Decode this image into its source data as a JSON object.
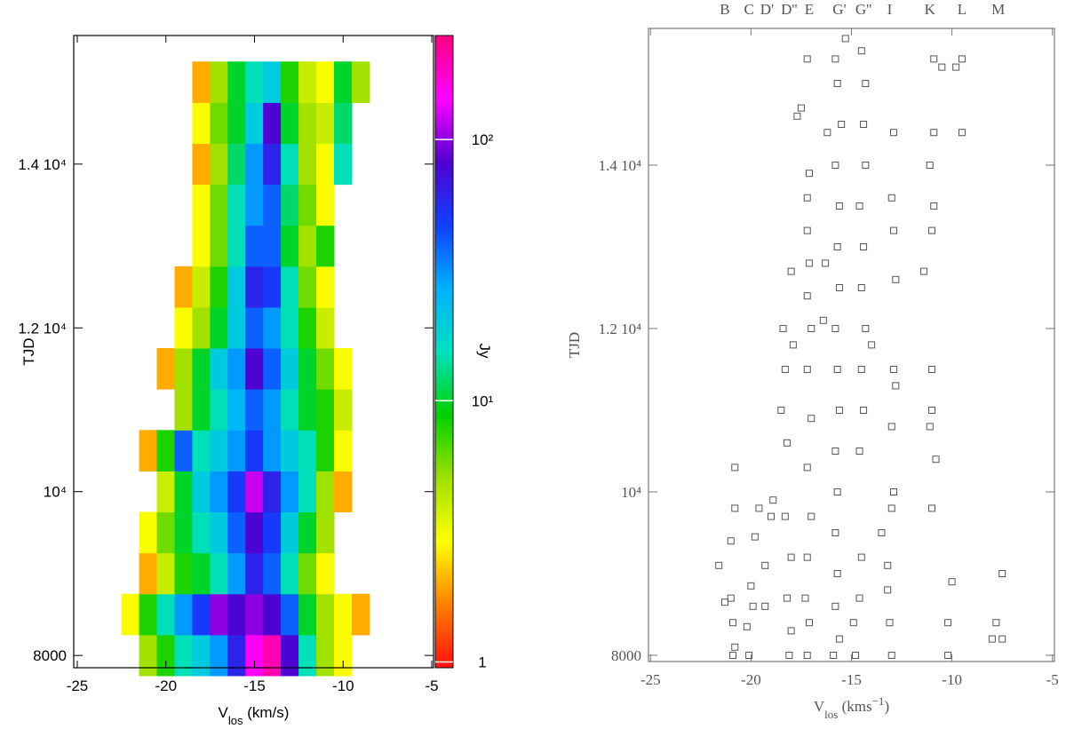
{
  "chart_data": [
    {
      "type": "heatmap",
      "x_label": {
        "main": "V",
        "sub": "los",
        "rest": " (km/s)"
      },
      "y_label": "TJD",
      "colorbar_label": "Jy",
      "x": [
        -22,
        -21,
        -20,
        -19,
        -18,
        -17,
        -16,
        -15,
        -14,
        -13,
        -12,
        -11,
        -10,
        -9
      ],
      "y": [
        8000,
        8500,
        9000,
        9500,
        10000,
        10500,
        11000,
        11500,
        12000,
        12500,
        13000,
        13500,
        14000,
        14500,
        15000
      ],
      "z": [
        [
          null,
          5,
          8,
          15,
          20,
          30,
          60,
          150,
          200,
          80,
          15,
          5,
          3,
          null
        ],
        [
          3,
          8,
          15,
          30,
          50,
          100,
          80,
          100,
          80,
          40,
          10,
          5,
          3,
          2
        ],
        [
          null,
          2,
          4,
          8,
          10,
          15,
          30,
          60,
          40,
          15,
          6,
          3,
          null,
          null
        ],
        [
          null,
          3,
          6,
          10,
          15,
          20,
          40,
          80,
          50,
          20,
          10,
          5,
          null,
          null
        ],
        [
          null,
          null,
          4,
          10,
          20,
          30,
          50,
          120,
          60,
          30,
          15,
          5,
          2,
          null
        ],
        [
          null,
          2,
          8,
          40,
          15,
          20,
          30,
          50,
          30,
          20,
          15,
          8,
          3,
          null
        ],
        [
          null,
          null,
          null,
          5,
          10,
          15,
          25,
          40,
          30,
          15,
          10,
          8,
          4,
          null
        ],
        [
          null,
          null,
          2,
          5,
          10,
          20,
          30,
          80,
          40,
          20,
          10,
          6,
          3,
          null
        ],
        [
          null,
          null,
          null,
          3,
          5,
          10,
          20,
          40,
          30,
          15,
          8,
          4,
          null,
          null
        ],
        [
          null,
          null,
          null,
          2,
          4,
          8,
          20,
          60,
          50,
          15,
          6,
          3,
          null,
          null
        ],
        [
          null,
          null,
          null,
          null,
          3,
          6,
          15,
          40,
          40,
          10,
          5,
          8,
          null,
          null
        ],
        [
          null,
          null,
          null,
          null,
          3,
          6,
          15,
          30,
          40,
          12,
          6,
          3,
          null,
          null
        ],
        [
          null,
          null,
          null,
          null,
          2,
          5,
          12,
          30,
          60,
          15,
          5,
          3,
          15,
          null
        ],
        [
          null,
          null,
          null,
          null,
          3,
          6,
          10,
          20,
          80,
          10,
          5,
          4,
          12,
          null
        ],
        [
          null,
          null,
          null,
          null,
          2,
          5,
          10,
          15,
          20,
          8,
          4,
          3,
          10,
          5
        ]
      ],
      "xlim": [
        -25.2,
        -4.9
      ],
      "xticks": [
        -25,
        -20,
        -15,
        -10,
        -5
      ],
      "ylim": [
        7850,
        15570
      ],
      "yticks": [
        8000,
        {
          "value": 10000,
          "label": "10⁴"
        },
        {
          "value": 12000,
          "label": "1.2 10⁴"
        },
        {
          "value": 14000,
          "label": "1.4 10⁴"
        }
      ],
      "zlim": [
        0.95,
        250
      ],
      "log_color": true,
      "zticks": [
        1,
        {
          "value": 10,
          "label": "10¹"
        },
        {
          "value": 100,
          "label": "10²"
        }
      ],
      "colorscale": [
        "#ff1010",
        "#ff8000",
        "#ffff00",
        "#a0e000",
        "#00d000",
        "#00e0c0",
        "#00b0ff",
        "#1040ff",
        "#5000d0",
        "#ff00ff",
        "#ff0080"
      ]
    },
    {
      "type": "scatter",
      "x_label": {
        "main": "V",
        "sub": "los",
        "rest": " (kms",
        "sup": "−1",
        "end": ")"
      },
      "y_label": "TJD",
      "features": [
        {
          "label": "B",
          "v": -21.3
        },
        {
          "label": "C",
          "v": -20.1
        },
        {
          "label": "D'",
          "v": -19.2
        },
        {
          "label": "D''",
          "v": -18.1
        },
        {
          "label": "E",
          "v": -17.1
        },
        {
          "label": "G'",
          "v": -15.6
        },
        {
          "label": "G''",
          "v": -14.4
        },
        {
          "label": "I",
          "v": -13.1
        },
        {
          "label": "K",
          "v": -11.1
        },
        {
          "label": "L",
          "v": -9.5
        },
        {
          "label": "M",
          "v": -7.7
        }
      ],
      "x": [
        -21.6,
        -21.3,
        -21.0,
        -20.9,
        -20.8,
        -20.9,
        -21.0,
        -20.8,
        -20.8,
        -20.1,
        -20.2,
        -19.9,
        -20.0,
        -19.8,
        -19.6,
        -19.3,
        -19.3,
        -19.0,
        -18.9,
        -18.1,
        -18.0,
        -18.2,
        -18.0,
        -18.3,
        -18.2,
        -18.5,
        -18.3,
        -18.4,
        -18.0,
        -17.9,
        -17.2,
        -17.1,
        -17.3,
        -17.2,
        -17.0,
        -17.2,
        -17.0,
        -17.2,
        -17.0,
        -17.2,
        -17.1,
        -17.2,
        -17.2,
        -17.1,
        -17.7,
        -17.5,
        -17.2,
        -16.4,
        -16.3,
        -16.2,
        -15.9,
        -15.6,
        -15.8,
        -15.7,
        -15.8,
        -15.7,
        -15.8,
        -15.6,
        -15.7,
        -15.8,
        -15.6,
        -15.7,
        -15.6,
        -15.8,
        -15.5,
        -15.7,
        -15.8,
        -15.3,
        -14.8,
        -14.9,
        -14.6,
        -14.5,
        -14.6,
        -14.4,
        -14.5,
        -14.3,
        -14.5,
        -14.4,
        -14.6,
        -14.3,
        -14.4,
        -14.3,
        -14.5,
        -14.0,
        -13.5,
        -13.2,
        -13.0,
        -13.1,
        -13.2,
        -13.0,
        -12.9,
        -13.0,
        -12.8,
        -12.9,
        -12.8,
        -12.9,
        -13.0,
        -12.9,
        -11.4,
        -11.1,
        -11.0,
        -11.0,
        -10.8,
        -11.0,
        -11.0,
        -10.9,
        -11.1,
        -10.9,
        -10.9,
        -10.5,
        -10.2,
        -10.2,
        -10.0,
        -9.5,
        -9.8,
        -9.5,
        -8.0,
        -7.8,
        -7.5,
        -7.5
      ],
      "y": [
        9100,
        8650,
        8700,
        8400,
        8100,
        8000,
        9400,
        9800,
        10300,
        8000,
        8350,
        8600,
        8850,
        9450,
        9800,
        8600,
        9100,
        9700,
        9900,
        8000,
        8300,
        8700,
        9200,
        9700,
        10600,
        11000,
        11500,
        12000,
        12700,
        11800,
        8000,
        8400,
        8700,
        9200,
        9700,
        10300,
        10900,
        11500,
        12000,
        12400,
        12800,
        13200,
        13600,
        13900,
        14600,
        14700,
        15300,
        12100,
        12800,
        14400,
        8000,
        8200,
        8600,
        9000,
        9500,
        10000,
        10500,
        11000,
        11500,
        12000,
        12500,
        13000,
        13500,
        14000,
        14500,
        15000,
        15300,
        15550,
        8000,
        8400,
        8700,
        9200,
        10500,
        11000,
        11500,
        12000,
        12500,
        13000,
        13500,
        14000,
        14500,
        15000,
        15400,
        11800,
        9500,
        9100,
        8000,
        8400,
        8800,
        9800,
        10000,
        10800,
        11300,
        11500,
        12600,
        13200,
        13600,
        14400,
        12700,
        10800,
        11000,
        11500,
        10400,
        9800,
        13200,
        13500,
        14000,
        14400,
        15300,
        15200,
        8000,
        8400,
        8900,
        15300,
        15200,
        14400,
        8200,
        8400,
        8200,
        9000
      ],
      "xlim": [
        -25.1,
        -4.9
      ],
      "xticks": [
        -25,
        -20,
        -15,
        -10,
        -5
      ],
      "ylim": [
        7924,
        15674
      ],
      "yticks": [
        8000,
        {
          "value": 10000,
          "label": "10⁴"
        },
        {
          "value": 12000,
          "label": "1.2 10⁴"
        },
        {
          "value": 14000,
          "label": "1.4 10⁴"
        }
      ],
      "color": "#555555"
    }
  ]
}
